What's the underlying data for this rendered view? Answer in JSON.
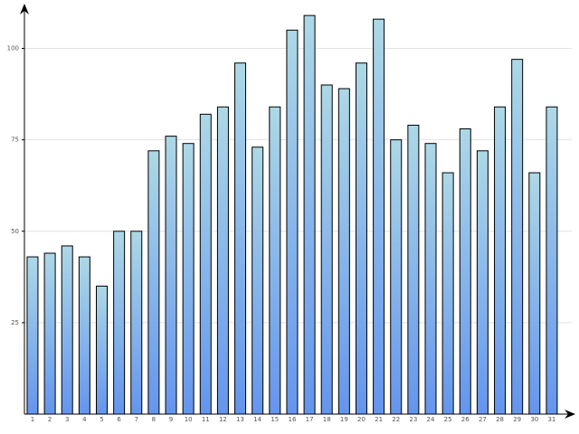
{
  "chart_data": {
    "type": "bar",
    "categories": [
      "1",
      "2",
      "3",
      "4",
      "5",
      "6",
      "7",
      "8",
      "9",
      "10",
      "11",
      "12",
      "13",
      "14",
      "15",
      "16",
      "17",
      "18",
      "19",
      "20",
      "21",
      "22",
      "23",
      "24",
      "25",
      "26",
      "27",
      "28",
      "29",
      "30",
      "31"
    ],
    "values": [
      43,
      44,
      46,
      43,
      35,
      50,
      50,
      72,
      76,
      74,
      82,
      84,
      96,
      73,
      84,
      105,
      109,
      90,
      89,
      96,
      108,
      75,
      79,
      74,
      66,
      78,
      72,
      84,
      97,
      66,
      84
    ],
    "color": [
      "#add8e6",
      "#6495ed"
    ],
    "ylim": [
      0,
      112
    ],
    "yticks": [
      25,
      50,
      75,
      100
    ],
    "grid": true
  }
}
